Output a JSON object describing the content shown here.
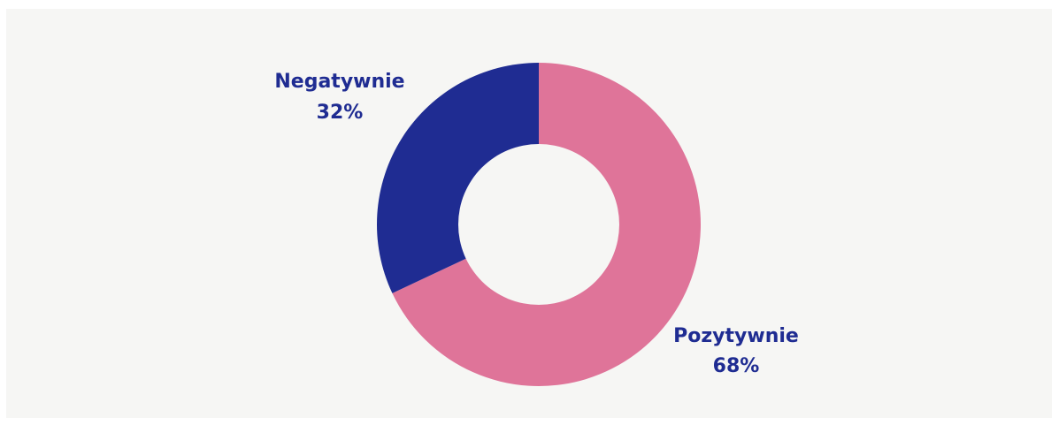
{
  "chart_data": {
    "type": "pie",
    "donut": true,
    "categories": [
      "Pozytywnie",
      "Negatywnie"
    ],
    "values": [
      68,
      32
    ],
    "unit": "%",
    "colors": {
      "Pozytywnie": "#df7499",
      "Negatywnie": "#1f2c92"
    },
    "labels": [
      {
        "name": "Pozytywnie",
        "value_text": "68%"
      },
      {
        "name": "Negatywnie",
        "value_text": "32%"
      }
    ],
    "start_angle": "top",
    "direction": "clockwise",
    "label_color": "#1f2c92",
    "background": "#f6f6f4"
  }
}
